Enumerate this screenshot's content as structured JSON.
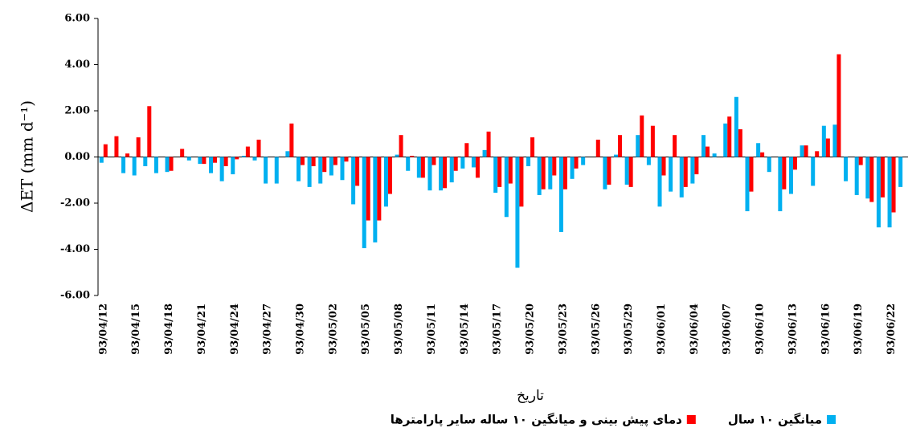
{
  "chart_data": {
    "type": "bar",
    "y_label": "ΔET (mm d⁻¹)",
    "x_label": "تاریخ",
    "categories": [
      "93/04/12",
      null,
      null,
      "93/04/15",
      null,
      null,
      "93/04/18",
      null,
      null,
      "93/04/21",
      null,
      null,
      "93/04/24",
      null,
      null,
      "93/04/27",
      null,
      null,
      "93/04/30",
      null,
      null,
      "93/05/02",
      null,
      null,
      "93/05/05",
      null,
      null,
      "93/05/08",
      null,
      null,
      "93/05/11",
      null,
      null,
      "93/05/14",
      null,
      null,
      "93/05/17",
      null,
      null,
      "93/05/20",
      null,
      null,
      "93/05/23",
      null,
      null,
      "93/05/26",
      null,
      null,
      "93/05/29",
      null,
      null,
      "93/06/01",
      null,
      null,
      "93/06/04",
      null,
      null,
      "93/06/07",
      null,
      null,
      "93/06/10",
      null,
      null,
      "93/06/13",
      null,
      null,
      "93/06/16",
      null,
      null,
      "93/06/19",
      null,
      null,
      "93/06/22",
      null
    ],
    "series": [
      {
        "name": "میانگین ۱۰ سال",
        "color": "#00b0f0",
        "values": [
          -0.25,
          0,
          -0.7,
          -0.8,
          -0.4,
          -0.7,
          -0.65,
          0,
          -0.15,
          -0.3,
          -0.7,
          -1.05,
          -0.75,
          0.05,
          -0.15,
          -1.15,
          -1.15,
          0.25,
          -1.05,
          -1.3,
          -1.15,
          -0.8,
          -1.0,
          -2.05,
          -3.95,
          -3.7,
          -2.15,
          0.1,
          -0.6,
          -0.9,
          -1.45,
          -1.45,
          -1.1,
          -0.5,
          -0.45,
          0.3,
          -1.55,
          -2.6,
          -4.8,
          -0.4,
          -1.65,
          -1.4,
          -3.25,
          -0.95,
          -0.35,
          0,
          -1.4,
          0.1,
          -1.2,
          0.95,
          -0.35,
          -2.15,
          -1.5,
          -1.75,
          -1.15,
          0.95,
          0.15,
          1.45,
          2.6,
          -2.35,
          0.6,
          -0.65,
          -2.35,
          -1.6,
          0.5,
          -1.25,
          1.35,
          1.4,
          -1.05,
          -1.65,
          -1.8,
          -3.05,
          -3.05,
          -1.3
        ]
      },
      {
        "name": "دمای پیش بینی و میانگین ۱۰ ساله سایر پارامترها",
        "color": "#ff0000",
        "values": [
          0.55,
          0.9,
          0.15,
          0.85,
          2.2,
          0,
          -0.6,
          0.35,
          0,
          -0.3,
          -0.25,
          -0.4,
          -0.1,
          0.45,
          0.75,
          0,
          0,
          1.45,
          -0.35,
          -0.4,
          -0.65,
          -0.35,
          -0.2,
          -1.25,
          -2.75,
          -2.75,
          -1.6,
          0.95,
          0.05,
          -0.9,
          -0.35,
          -1.35,
          -0.6,
          0.6,
          -0.9,
          1.1,
          -1.3,
          -1.15,
          -2.15,
          0.85,
          -1.4,
          -0.8,
          -1.4,
          -0.5,
          0,
          0.75,
          -1.2,
          0.95,
          -1.3,
          1.8,
          1.35,
          -0.8,
          0.95,
          -1.3,
          -0.75,
          0.45,
          0,
          1.75,
          1.2,
          -1.5,
          0.2,
          0,
          -1.4,
          -0.55,
          0.5,
          0.25,
          0.8,
          4.45,
          0,
          -0.35,
          -1.95,
          -1.75,
          -2.4,
          null
        ]
      }
    ],
    "ylim": [
      -6,
      6
    ],
    "yticks": [
      {
        "value": -6,
        "label": "-6.00"
      },
      {
        "value": -4,
        "label": "-4.00"
      },
      {
        "value": -2,
        "label": "-2.00"
      },
      {
        "value": 0,
        "label": "0.00"
      },
      {
        "value": 2,
        "label": "2.00"
      },
      {
        "value": 4,
        "label": "4.00"
      },
      {
        "value": 6,
        "label": "6.00"
      }
    ],
    "grid": false
  }
}
